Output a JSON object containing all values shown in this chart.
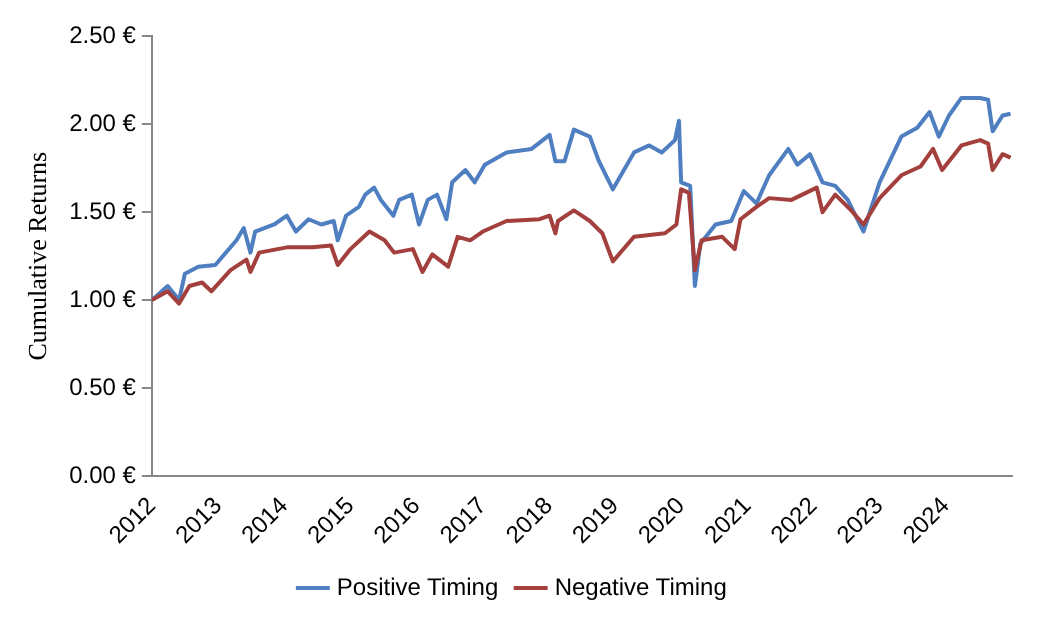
{
  "chart_data": {
    "type": "line",
    "ylabel": "Cumulative Returns",
    "legend": "bottom",
    "grid": false,
    "marker": "none",
    "line_style": "solid",
    "xlim": [
      "2012",
      "2025"
    ],
    "xticks": [
      {
        "value": "2012",
        "label": "2012"
      },
      {
        "value": "2013",
        "label": "2013"
      },
      {
        "value": "2014",
        "label": "2014"
      },
      {
        "value": "2015",
        "label": "2015"
      },
      {
        "value": "2016",
        "label": "2016"
      },
      {
        "value": "2017",
        "label": "2017"
      },
      {
        "value": "2018",
        "label": "2018"
      },
      {
        "value": "2019",
        "label": "2019"
      },
      {
        "value": "2020",
        "label": "2020"
      },
      {
        "value": "2021",
        "label": "2021"
      },
      {
        "value": "2022",
        "label": "2022"
      },
      {
        "value": "2023",
        "label": "2023"
      },
      {
        "value": "2024",
        "label": "2024"
      }
    ],
    "ylim": [
      0,
      2.5
    ],
    "yticks": [
      {
        "value": 0,
        "label": "0.00 €"
      },
      {
        "value": 0.5,
        "label": "0.50 €"
      },
      {
        "value": 1,
        "label": "1.00 €"
      },
      {
        "value": 1.5,
        "label": "1.50 €"
      },
      {
        "value": 2,
        "label": "2.00 €"
      },
      {
        "value": 2.5,
        "label": "2.50 €"
      }
    ],
    "series": [
      {
        "name": "Positive Timing",
        "color": "#4f7fc0",
        "x": [
          "2012-01-01",
          "2012-03-28",
          "2012-05-30",
          "2012-07-01",
          "2012-09-13",
          "2012-12-16",
          "2013-04-12",
          "2013-05-22",
          "2013-06-28",
          "2013-07-24",
          "2013-11-06",
          "2014-01-15",
          "2014-03-06",
          "2014-05-15",
          "2014-07-24",
          "2014-10-01",
          "2014-10-23",
          "2014-12-08",
          "2015-02-17",
          "2015-03-24",
          "2015-05-12",
          "2015-06-18",
          "2015-08-26",
          "2015-09-27",
          "2015-12-06",
          "2016-01-15",
          "2016-03-03",
          "2016-04-23",
          "2016-06-14",
          "2016-07-16",
          "2016-09-27",
          "2016-11-17",
          "2017-01-12",
          "2017-05-12",
          "2017-09-27",
          "2018-01-05",
          "2018-02-06",
          "2018-03-28",
          "2018-05-19",
          "2018-08-15",
          "2018-10-04",
          "2018-12-20",
          "2019-04-16",
          "2019-07-09",
          "2019-09-16",
          "2019-11-28",
          "2019-12-20",
          "2020-01-01",
          "2020-02-20",
          "2020-03-17",
          "2020-04-16",
          "2020-07-09",
          "2020-10-04",
          "2020-12-12",
          "2021-02-20",
          "2021-05-01",
          "2021-08-15",
          "2021-10-04",
          "2021-12-12",
          "2022-02-20",
          "2022-05-01",
          "2022-07-09",
          "2022-10-04",
          "2023-01-01",
          "2023-05-01",
          "2023-07-28",
          "2023-10-04",
          "2023-11-24",
          "2024-01-19",
          "2024-03-28",
          "2024-07-09",
          "2024-08-22",
          "2024-09-16",
          "2024-11-10",
          "2024-12-24"
        ],
        "values": [
          1.0,
          1.08,
          1.0,
          1.15,
          1.19,
          1.2,
          1.34,
          1.41,
          1.27,
          1.39,
          1.43,
          1.48,
          1.39,
          1.46,
          1.43,
          1.45,
          1.34,
          1.48,
          1.53,
          1.6,
          1.64,
          1.57,
          1.48,
          1.57,
          1.6,
          1.43,
          1.57,
          1.6,
          1.46,
          1.67,
          1.74,
          1.67,
          1.77,
          1.84,
          1.86,
          1.94,
          1.79,
          1.79,
          1.97,
          1.93,
          1.79,
          1.63,
          1.84,
          1.88,
          1.84,
          1.91,
          2.02,
          1.67,
          1.65,
          1.08,
          1.32,
          1.43,
          1.45,
          1.62,
          1.55,
          1.71,
          1.86,
          1.77,
          1.83,
          1.67,
          1.65,
          1.57,
          1.39,
          1.67,
          1.93,
          1.98,
          2.07,
          1.93,
          2.05,
          2.15,
          2.15,
          2.14,
          1.96,
          2.05,
          2.06
        ]
      },
      {
        "name": "Negative Timing",
        "color": "#a33f3c",
        "x": [
          "2012-01-01",
          "2012-03-28",
          "2012-05-30",
          "2012-07-26",
          "2012-10-04",
          "2012-11-24",
          "2013-03-10",
          "2013-06-06",
          "2013-06-28",
          "2013-08-15",
          "2014-01-15",
          "2014-06-06",
          "2014-09-16",
          "2014-10-23",
          "2015-01-01",
          "2015-04-16",
          "2015-07-09",
          "2015-08-30",
          "2015-12-12",
          "2016-02-03",
          "2016-03-28",
          "2016-06-24",
          "2016-08-15",
          "2016-10-23",
          "2017-01-01",
          "2017-05-12",
          "2017-11-10",
          "2018-01-05",
          "2018-02-06",
          "2018-02-20",
          "2018-05-19",
          "2018-08-15",
          "2018-10-23",
          "2018-12-20",
          "2019-04-16",
          "2019-10-04",
          "2019-12-06",
          "2020-01-01",
          "2020-02-13",
          "2020-03-17",
          "2020-04-23",
          "2020-08-15",
          "2020-10-23",
          "2020-11-24",
          "2021-02-20",
          "2021-05-01",
          "2021-09-01",
          "2022-01-19",
          "2022-02-20",
          "2022-05-01",
          "2022-07-28",
          "2022-10-04",
          "2023-01-01",
          "2023-05-01",
          "2023-08-15",
          "2023-10-23",
          "2023-12-12",
          "2024-03-28",
          "2024-07-09",
          "2024-08-22",
          "2024-09-16",
          "2024-11-10",
          "2024-12-24"
        ],
        "values": [
          1.0,
          1.05,
          0.98,
          1.08,
          1.1,
          1.05,
          1.17,
          1.23,
          1.16,
          1.27,
          1.3,
          1.3,
          1.31,
          1.2,
          1.29,
          1.39,
          1.34,
          1.27,
          1.29,
          1.16,
          1.26,
          1.19,
          1.36,
          1.34,
          1.39,
          1.45,
          1.46,
          1.48,
          1.38,
          1.45,
          1.51,
          1.45,
          1.38,
          1.22,
          1.36,
          1.38,
          1.43,
          1.63,
          1.61,
          1.17,
          1.34,
          1.36,
          1.29,
          1.46,
          1.53,
          1.58,
          1.57,
          1.64,
          1.5,
          1.6,
          1.51,
          1.43,
          1.58,
          1.71,
          1.76,
          1.86,
          1.74,
          1.88,
          1.91,
          1.89,
          1.74,
          1.83,
          1.81
        ]
      }
    ]
  }
}
